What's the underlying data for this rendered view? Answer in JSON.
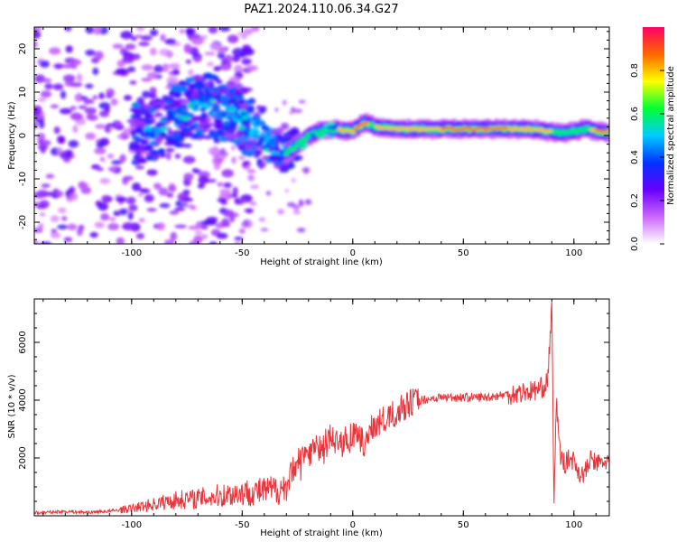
{
  "title": "PAZ1.2024.110.06.34.G27",
  "chart_data": [
    {
      "type": "heatmap",
      "xlabel": "Height of straight line (km)",
      "ylabel": "Frequency (Hz)",
      "xlim": [
        -144,
        116
      ],
      "ylim": [
        -25,
        25
      ],
      "xticks": [
        -100,
        -50,
        0,
        50,
        100
      ],
      "yticks": [
        -20,
        -10,
        0,
        10,
        20
      ],
      "ridge": [
        {
          "x": -95,
          "y": 0
        },
        {
          "x": -85,
          "y": 2
        },
        {
          "x": -75,
          "y": 6
        },
        {
          "x": -65,
          "y": 7
        },
        {
          "x": -55,
          "y": 5
        },
        {
          "x": -45,
          "y": 2
        },
        {
          "x": -38,
          "y": -2
        },
        {
          "x": -30,
          "y": -4
        },
        {
          "x": -25,
          "y": -2
        },
        {
          "x": -20,
          "y": 0
        },
        {
          "x": -12,
          "y": 1.5
        },
        {
          "x": 0,
          "y": 1
        },
        {
          "x": 5,
          "y": 3
        },
        {
          "x": 10,
          "y": 2
        },
        {
          "x": 20,
          "y": 1.5
        },
        {
          "x": 50,
          "y": 1.5
        },
        {
          "x": 80,
          "y": 1.5
        },
        {
          "x": 95,
          "y": 0.5
        },
        {
          "x": 105,
          "y": 1.5
        },
        {
          "x": 116,
          "y": 0.5
        }
      ],
      "colorbar": {
        "label": "Normalized spectral amplitude",
        "ticks": [
          0.0,
          0.2,
          0.4,
          0.6,
          0.8
        ],
        "range": [
          0,
          1
        ],
        "colors": [
          "#ffffff",
          "#cc66ff",
          "#6600ff",
          "#0033ff",
          "#00ccff",
          "#00ff33",
          "#ffff00",
          "#ff6600",
          "#ff0066"
        ]
      }
    },
    {
      "type": "line",
      "xlabel": "Height of straight line (km)",
      "ylabel": "SNR (10 * v/v)",
      "xlim": [
        -144,
        116
      ],
      "ylim": [
        0,
        7500
      ],
      "xticks": [
        -100,
        -50,
        0,
        50,
        100
      ],
      "yticks": [
        2000,
        4000,
        6000
      ],
      "color": "#e8343a",
      "series": [
        {
          "x": [
            -144,
            -130,
            -120,
            -110,
            -100,
            -90,
            -80,
            -70,
            -60,
            -50,
            -40,
            -35,
            -30,
            -25,
            -20,
            -15,
            -10,
            -5,
            0,
            5,
            10,
            15,
            20,
            25,
            30,
            40,
            50,
            60,
            70,
            80,
            85,
            88,
            90,
            91,
            92,
            93,
            94,
            96,
            98,
            100,
            103,
            105,
            108,
            110,
            116
          ],
          "values": [
            100,
            150,
            120,
            160,
            250,
            400,
            550,
            600,
            700,
            800,
            850,
            900,
            1000,
            2000,
            2200,
            2400,
            2700,
            2500,
            2800,
            2500,
            3200,
            3300,
            3600,
            3900,
            4000,
            4100,
            4100,
            4100,
            4200,
            4300,
            4400,
            4600,
            7200,
            300,
            4000,
            3000,
            2000,
            1800,
            2000,
            1900,
            1400,
            1500,
            2000,
            1800,
            1900
          ]
        }
      ]
    }
  ]
}
